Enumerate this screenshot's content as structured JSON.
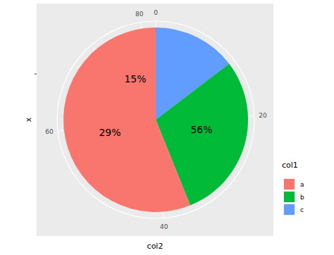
{
  "chart_data": {
    "type": "pie",
    "x_label": "col2",
    "y_label": "x",
    "legend_title": "col1",
    "categories": [
      "a",
      "b",
      "c"
    ],
    "values": [
      46,
      24,
      12
    ],
    "colors": [
      "#f8766d",
      "#00ba38",
      "#619cff"
    ],
    "ylim": [
      0,
      82
    ],
    "yticks": [
      0,
      20,
      40,
      60,
      80
    ],
    "annotations": [
      "15%",
      "29%",
      "56%"
    ],
    "legend": "right"
  }
}
